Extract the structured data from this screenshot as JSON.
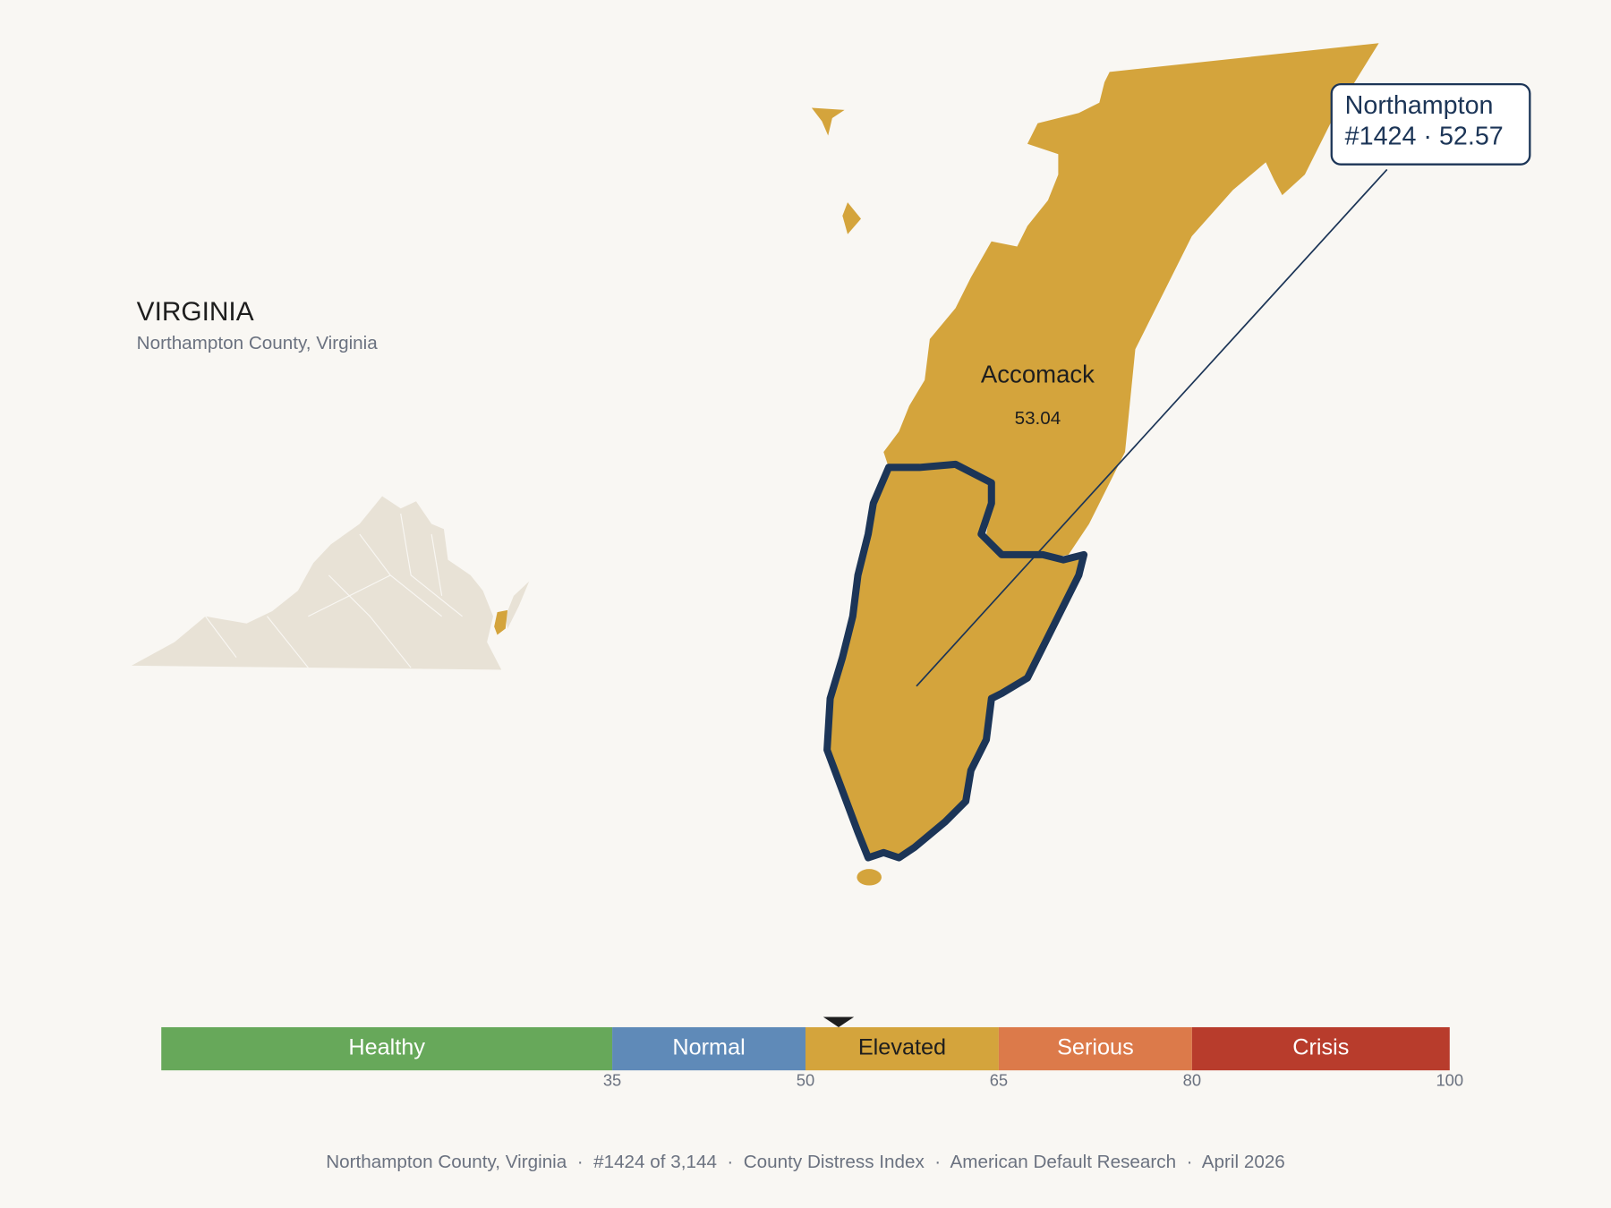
{
  "header": {
    "title": "VIRGINIA",
    "subtitle": "Northampton County, Virginia"
  },
  "map": {
    "label": "Accomack",
    "value": "53.04"
  },
  "tooltip": {
    "name": "Northampton",
    "detail": "#1424 · 52.57"
  },
  "scale": {
    "xlim": [
      0,
      100
    ],
    "ticks": [
      35,
      50,
      65,
      80,
      100
    ],
    "marker": 52.57,
    "bands": [
      {
        "label": "Healthy",
        "color": "#67a85a",
        "text_color": "#ffffff"
      },
      {
        "label": "Normal",
        "color": "#5f8ab8",
        "text_color": "#ffffff"
      },
      {
        "label": "Elevated",
        "color": "#d4a43c",
        "text_color": "#1e1e1e"
      },
      {
        "label": "Serious",
        "color": "#dc7a4a",
        "text_color": "#ffffff"
      },
      {
        "label": "Crisis",
        "color": "#b83c2c",
        "text_color": "#ffffff"
      }
    ]
  },
  "footer": "Northampton County, Virginia  ·  #1424 of 3,144  ·  County Distress Index  ·  American Default Research  ·  April 2026"
}
